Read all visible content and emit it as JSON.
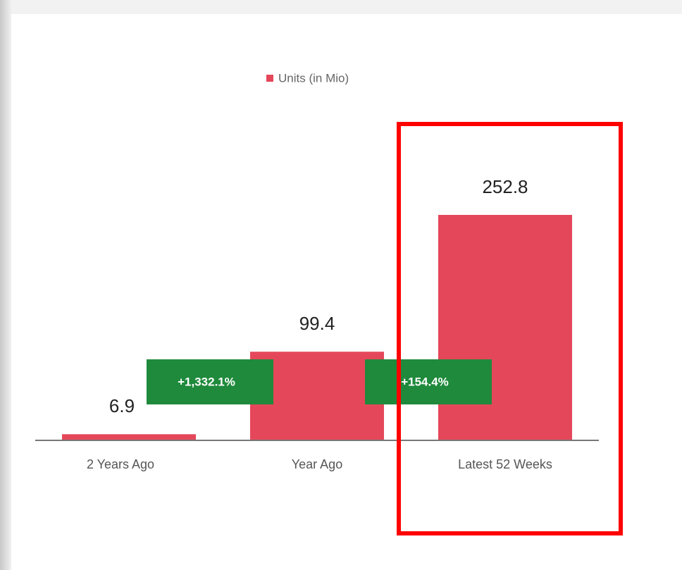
{
  "chart_data": {
    "type": "bar",
    "legend": "Units (in Mio)",
    "categories": [
      "2 Years Ago",
      "Year Ago",
      "Latest 52 Weeks"
    ],
    "values": [
      6.9,
      99.4,
      252.8
    ],
    "color": "#e5475a",
    "annotations": [
      "+1,332.1%",
      "+154.4%"
    ],
    "annotation_color": "#1f8a3c",
    "highlight_color": "#ff0000"
  }
}
